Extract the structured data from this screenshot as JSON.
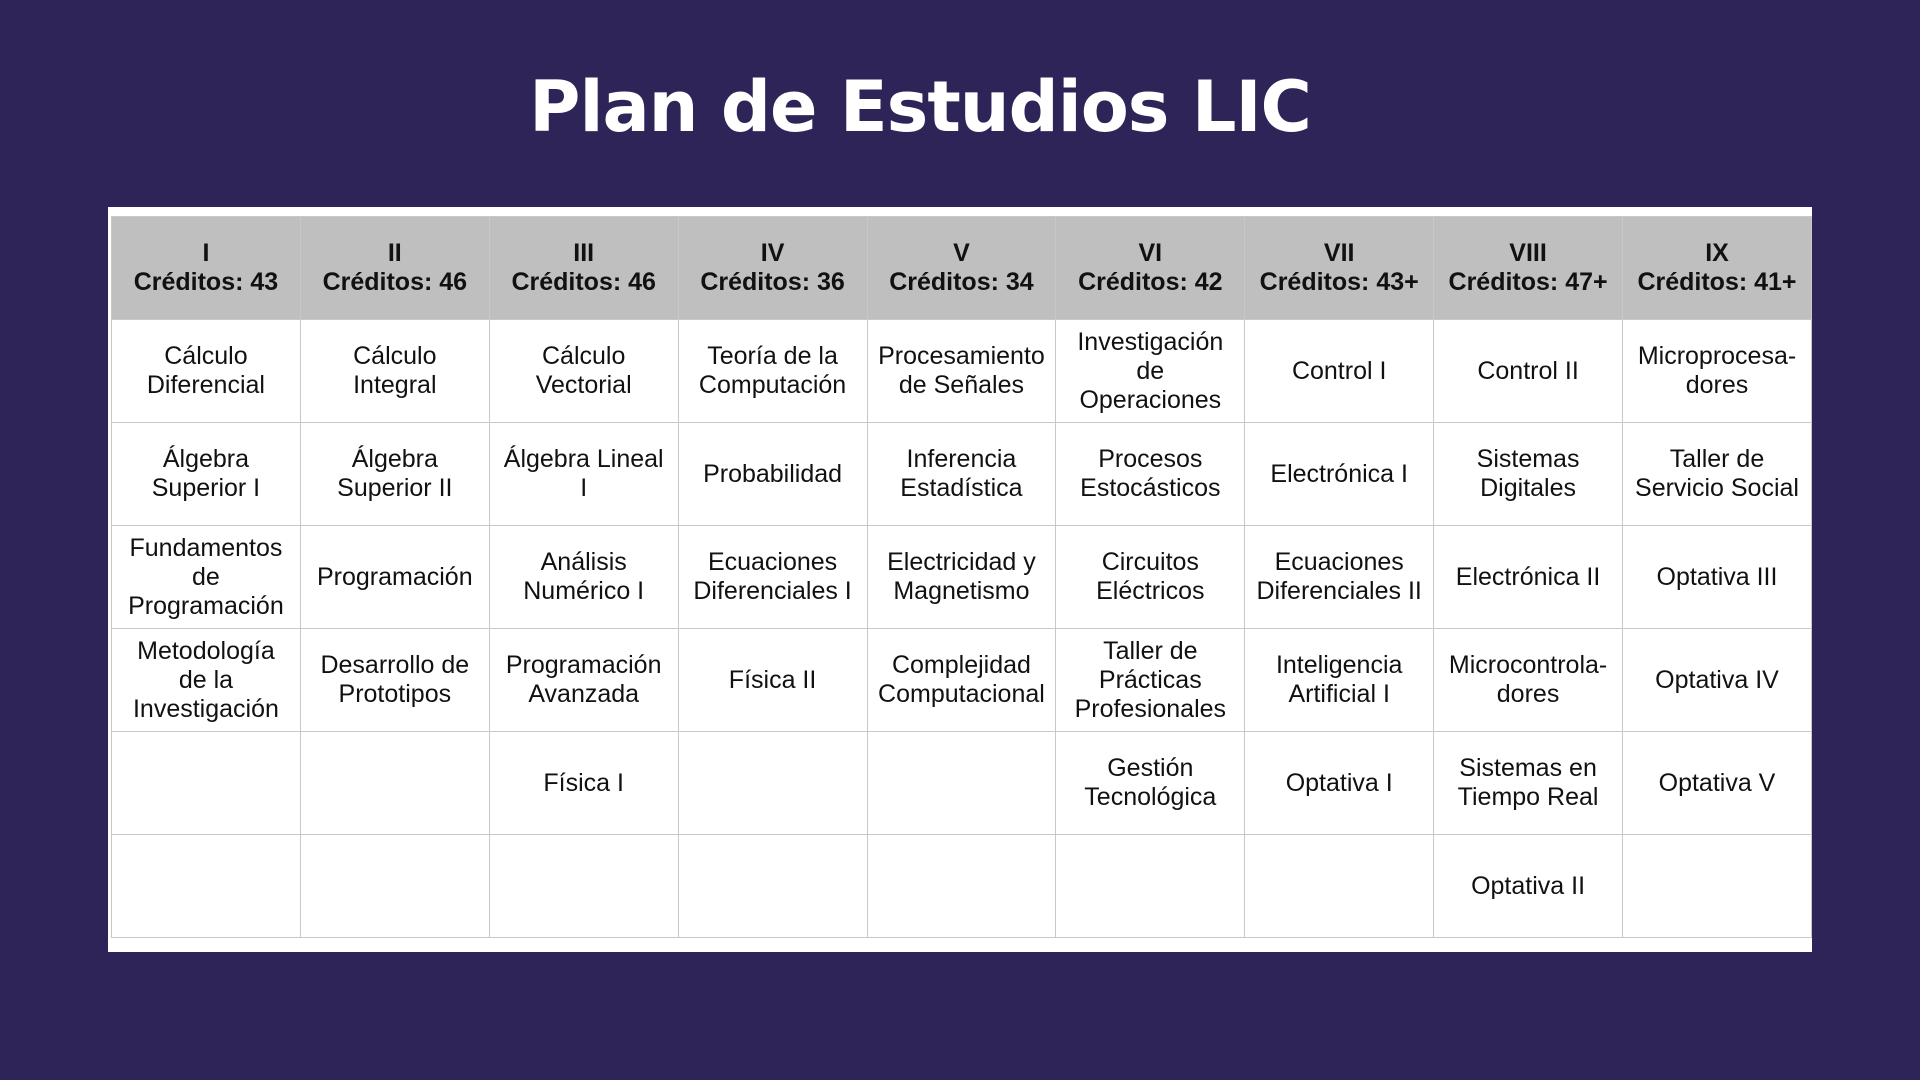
{
  "page": {
    "title": "Plan de Estudios LIC",
    "background_color": "#2e2457",
    "header_color": "#bfbfbf"
  },
  "table": {
    "semesters": [
      {
        "label": "I",
        "credits": "Créditos: 43"
      },
      {
        "label": "II",
        "credits": "Créditos: 46"
      },
      {
        "label": "III",
        "credits": "Créditos: 46"
      },
      {
        "label": "IV",
        "credits": "Créditos: 36"
      },
      {
        "label": "V",
        "credits": "Créditos: 34"
      },
      {
        "label": "VI",
        "credits": "Créditos: 42"
      },
      {
        "label": "VII",
        "credits": "Créditos: 43+"
      },
      {
        "label": "VIII",
        "credits": "Créditos: 47+"
      },
      {
        "label": "IX",
        "credits": "Créditos: 41+"
      }
    ],
    "rows": [
      [
        "Cálculo\nDiferencial",
        "Cálculo\nIntegral",
        "Cálculo\nVectorial",
        "Teoría de la\nComputación",
        "Procesamiento\nde Señales",
        "Investigación\nde\nOperaciones",
        "Control I",
        "Control II",
        "Microprocesa-\ndores"
      ],
      [
        "Álgebra\nSuperior I",
        "Álgebra\nSuperior II",
        "Álgebra Lineal\nI",
        "Probabilidad",
        "Inferencia\nEstadística",
        "Procesos\nEstocásticos",
        "Electrónica I",
        "Sistemas\nDigitales",
        "Taller de\nServicio Social"
      ],
      [
        "Fundamentos\nde\nProgramación",
        "Programación",
        "Análisis\nNumérico I",
        "Ecuaciones\nDiferenciales I",
        "Electricidad y\nMagnetismo",
        "Circuitos\nEléctricos",
        "Ecuaciones\nDiferenciales II",
        "Electrónica II",
        "Optativa III"
      ],
      [
        "Metodología\nde la\nInvestigación",
        "Desarrollo de\nPrototipos",
        "Programación\nAvanzada",
        "Física II",
        "Complejidad\nComputacional",
        "Taller de\nPrácticas\nProfesionales",
        "Inteligencia\nArtificial I",
        "Microcontrola-\ndores",
        "Optativa IV"
      ],
      [
        "",
        "",
        "Física I",
        "",
        "",
        "Gestión\nTecnológica",
        "Optativa I",
        "Sistemas en\nTiempo Real",
        "Optativa V"
      ],
      [
        "",
        "",
        "",
        "",
        "",
        "",
        "",
        "Optativa II",
        ""
      ]
    ]
  }
}
